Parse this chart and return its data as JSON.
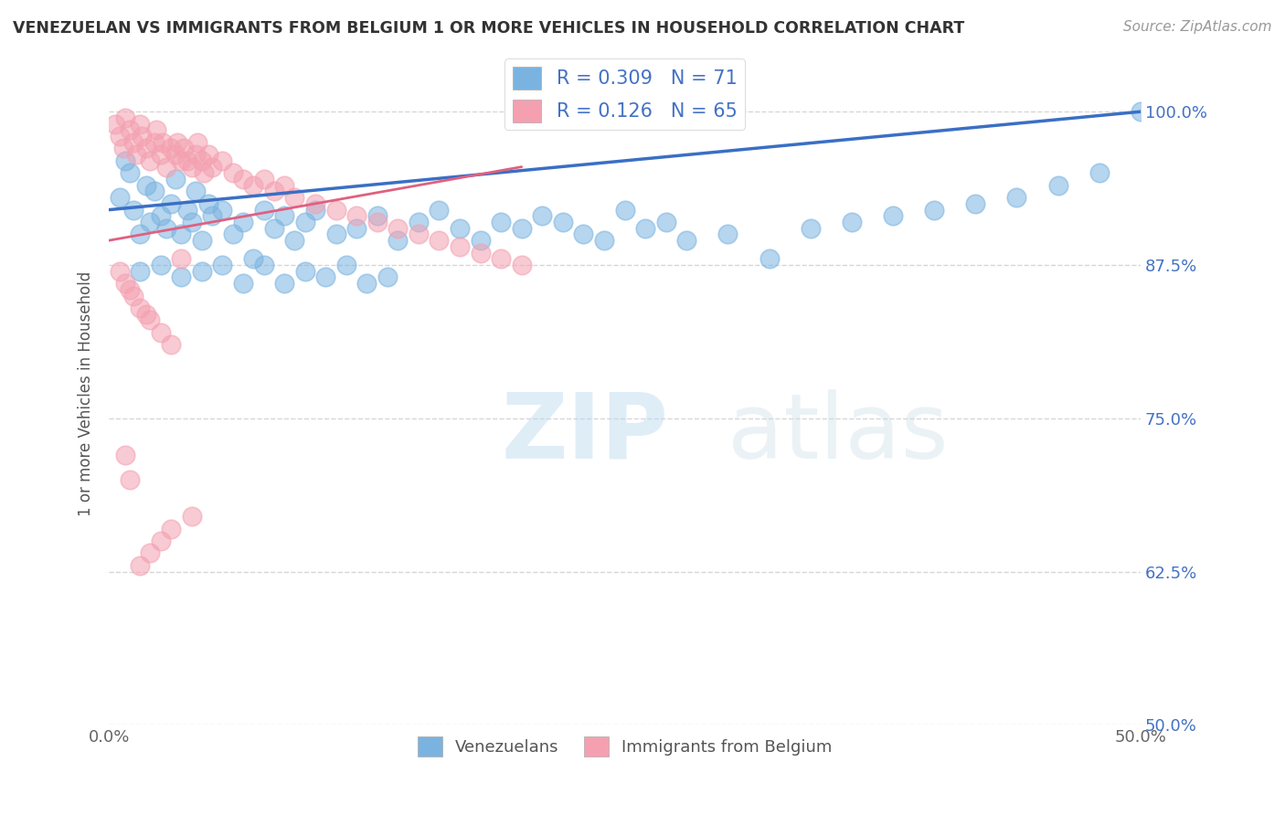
{
  "title": "VENEZUELAN VS IMMIGRANTS FROM BELGIUM 1 OR MORE VEHICLES IN HOUSEHOLD CORRELATION CHART",
  "source": "Source: ZipAtlas.com",
  "ylabel": "1 or more Vehicles in Household",
  "xlim": [
    0.0,
    0.5
  ],
  "ylim": [
    0.5,
    1.04
  ],
  "xtick_positions": [
    0.0,
    0.05,
    0.1,
    0.15,
    0.2,
    0.25,
    0.3,
    0.35,
    0.4,
    0.45,
    0.5
  ],
  "xtick_labels": [
    "0.0%",
    "",
    "",
    "",
    "",
    "",
    "",
    "",
    "",
    "",
    "50.0%"
  ],
  "ytick_positions": [
    0.5,
    0.625,
    0.75,
    0.875,
    1.0
  ],
  "ytick_labels": [
    "50.0%",
    "62.5%",
    "75.0%",
    "87.5%",
    "100.0%"
  ],
  "grid_color": "#cccccc",
  "blue_color": "#7ab3e0",
  "pink_color": "#f4a0b0",
  "blue_line_color": "#3a6fc4",
  "pink_line_color": "#e06080",
  "blue_R": 0.309,
  "blue_N": 71,
  "pink_R": 0.126,
  "pink_N": 65,
  "watermark_zip": "ZIP",
  "watermark_atlas": "atlas",
  "legend_label1": "Venezuelans",
  "legend_label2": "Immigrants from Belgium",
  "venezuelan_x": [
    0.005,
    0.008,
    0.01,
    0.012,
    0.015,
    0.018,
    0.02,
    0.022,
    0.025,
    0.028,
    0.03,
    0.032,
    0.035,
    0.038,
    0.04,
    0.042,
    0.045,
    0.048,
    0.05,
    0.055,
    0.06,
    0.065,
    0.07,
    0.075,
    0.08,
    0.085,
    0.09,
    0.095,
    0.1,
    0.11,
    0.12,
    0.13,
    0.14,
    0.15,
    0.16,
    0.17,
    0.18,
    0.19,
    0.2,
    0.21,
    0.22,
    0.23,
    0.24,
    0.25,
    0.26,
    0.27,
    0.28,
    0.3,
    0.32,
    0.34,
    0.36,
    0.38,
    0.4,
    0.42,
    0.44,
    0.46,
    0.48,
    0.5,
    0.015,
    0.025,
    0.035,
    0.045,
    0.055,
    0.065,
    0.075,
    0.085,
    0.095,
    0.105,
    0.115,
    0.125,
    0.135
  ],
  "venezuelan_y": [
    0.93,
    0.96,
    0.95,
    0.92,
    0.9,
    0.94,
    0.91,
    0.935,
    0.915,
    0.905,
    0.925,
    0.945,
    0.9,
    0.92,
    0.91,
    0.935,
    0.895,
    0.925,
    0.915,
    0.92,
    0.9,
    0.91,
    0.88,
    0.92,
    0.905,
    0.915,
    0.895,
    0.91,
    0.92,
    0.9,
    0.905,
    0.915,
    0.895,
    0.91,
    0.92,
    0.905,
    0.895,
    0.91,
    0.905,
    0.915,
    0.91,
    0.9,
    0.895,
    0.92,
    0.905,
    0.91,
    0.895,
    0.9,
    0.88,
    0.905,
    0.91,
    0.915,
    0.92,
    0.925,
    0.93,
    0.94,
    0.95,
    1.0,
    0.87,
    0.875,
    0.865,
    0.87,
    0.875,
    0.86,
    0.875,
    0.86,
    0.87,
    0.865,
    0.875,
    0.86,
    0.865
  ],
  "belgium_x": [
    0.003,
    0.005,
    0.007,
    0.008,
    0.01,
    0.012,
    0.013,
    0.015,
    0.016,
    0.018,
    0.02,
    0.022,
    0.023,
    0.025,
    0.026,
    0.028,
    0.03,
    0.032,
    0.033,
    0.035,
    0.036,
    0.038,
    0.04,
    0.042,
    0.043,
    0.045,
    0.046,
    0.048,
    0.05,
    0.055,
    0.06,
    0.065,
    0.07,
    0.075,
    0.08,
    0.085,
    0.09,
    0.1,
    0.11,
    0.12,
    0.13,
    0.14,
    0.15,
    0.16,
    0.17,
    0.18,
    0.19,
    0.2,
    0.005,
    0.008,
    0.01,
    0.012,
    0.015,
    0.018,
    0.02,
    0.025,
    0.03,
    0.008,
    0.01,
    0.035,
    0.015,
    0.02,
    0.025,
    0.03,
    0.04
  ],
  "belgium_y": [
    0.99,
    0.98,
    0.97,
    0.995,
    0.985,
    0.975,
    0.965,
    0.99,
    0.98,
    0.97,
    0.96,
    0.975,
    0.985,
    0.965,
    0.975,
    0.955,
    0.97,
    0.965,
    0.975,
    0.96,
    0.97,
    0.96,
    0.955,
    0.965,
    0.975,
    0.96,
    0.95,
    0.965,
    0.955,
    0.96,
    0.95,
    0.945,
    0.94,
    0.945,
    0.935,
    0.94,
    0.93,
    0.925,
    0.92,
    0.915,
    0.91,
    0.905,
    0.9,
    0.895,
    0.89,
    0.885,
    0.88,
    0.875,
    0.87,
    0.86,
    0.855,
    0.85,
    0.84,
    0.835,
    0.83,
    0.82,
    0.81,
    0.72,
    0.7,
    0.88,
    0.63,
    0.64,
    0.65,
    0.66,
    0.67
  ],
  "blue_line_x0": 0.0,
  "blue_line_y0": 0.92,
  "blue_line_x1": 0.5,
  "blue_line_y1": 1.0,
  "pink_line_x0": 0.0,
  "pink_line_y0": 0.895,
  "pink_line_x1": 0.2,
  "pink_line_y1": 0.955
}
